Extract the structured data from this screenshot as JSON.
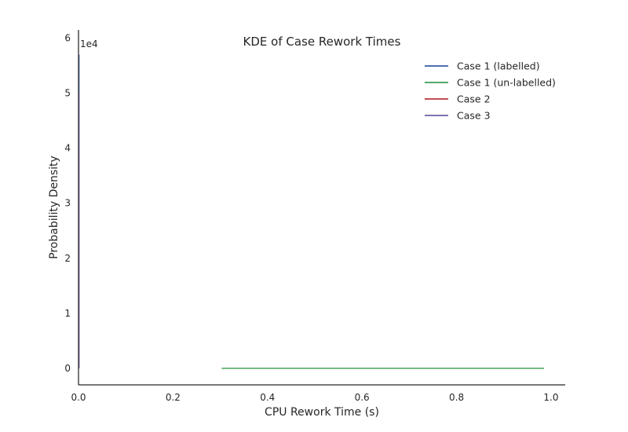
{
  "chart_data": {
    "type": "line",
    "title": "KDE of Case Rework Times",
    "xlabel": "CPU Rework Time (s)",
    "ylabel": "Probability Density",
    "y_offset_label": "1e4",
    "y_scale_factor": 10000,
    "xlim": [
      0.0,
      1.03
    ],
    "ylim": [
      -3000,
      61500
    ],
    "x_ticks": [
      0.0,
      0.2,
      0.4,
      0.6,
      0.8,
      1.0
    ],
    "x_tick_labels": [
      "0.0",
      "0.2",
      "0.4",
      "0.6",
      "0.8",
      "1.0"
    ],
    "y_ticks": [
      0,
      10000,
      20000,
      30000,
      40000,
      50000,
      60000
    ],
    "y_tick_labels": [
      "0",
      "1",
      "2",
      "3",
      "4",
      "5",
      "6"
    ],
    "grid": false,
    "legend_position": "top-right",
    "series": [
      {
        "name": "Case 1 (labelled)",
        "color": "#4c72b0",
        "x": [
          0.0,
          2e-05,
          4e-05,
          6e-05,
          8e-05,
          0.0001
        ],
        "y": [
          0,
          14000,
          57000,
          57000,
          14000,
          0
        ]
      },
      {
        "name": "Case 1 (un-labelled)",
        "color": "#55a868",
        "x": [
          0.303,
          0.5,
          0.7,
          0.9,
          0.985
        ],
        "y": [
          5,
          5,
          5,
          5,
          5
        ]
      },
      {
        "name": "Case 2",
        "color": "#c44e52",
        "x": [
          0.0,
          2e-05,
          4e-05,
          6e-05,
          0.0001
        ],
        "y": [
          0,
          10000,
          40000,
          10000,
          0
        ]
      },
      {
        "name": "Case 3",
        "color": "#8172b2",
        "x": [
          0.0,
          2e-05,
          4e-05,
          6e-05,
          0.0001
        ],
        "y": [
          0,
          12000,
          50000,
          12000,
          0
        ]
      }
    ]
  }
}
